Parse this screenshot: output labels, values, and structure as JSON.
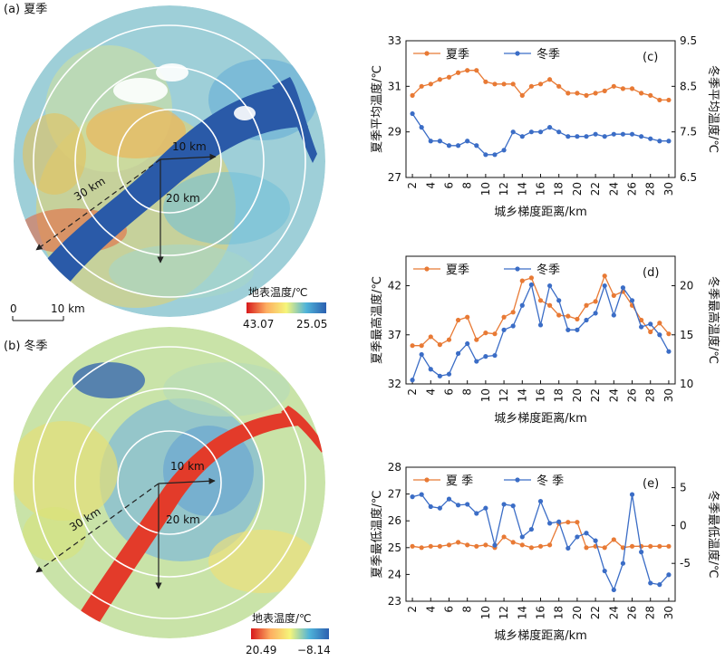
{
  "maps": [
    {
      "label": "(a) 夏季",
      "ring_labels": [
        "10 km",
        "20 km",
        "30 km"
      ],
      "scalebar": {
        "start": "0",
        "end": "10 km"
      },
      "legend": {
        "title": "地表温度/℃",
        "max": "43.07",
        "min": "25.05"
      }
    },
    {
      "label": "(b) 冬季",
      "ring_labels": [
        "10 km",
        "20 km",
        "30 km"
      ],
      "legend": {
        "title": "地表温度/℃",
        "max": "20.49",
        "min": "−8.14"
      }
    }
  ],
  "chart_data": [
    {
      "type": "line",
      "panel": "(c)",
      "xlabel": "城乡梯度距离/km",
      "ylabel_left": "夏季平均温度/℃",
      "ylabel_right": "冬季平均温度/℃",
      "x": [
        2,
        3,
        4,
        5,
        6,
        7,
        8,
        9,
        10,
        11,
        12,
        13,
        14,
        15,
        16,
        17,
        18,
        19,
        20,
        21,
        22,
        23,
        24,
        25,
        26,
        27,
        28,
        29,
        30
      ],
      "xticks": [
        2,
        4,
        6,
        8,
        10,
        12,
        14,
        16,
        18,
        20,
        22,
        24,
        26,
        28,
        30
      ],
      "ylim_left": [
        27,
        33
      ],
      "yticks_left": [
        27,
        29,
        31,
        33
      ],
      "ylim_right": [
        6.5,
        9.5
      ],
      "yticks_right": [
        "6.5",
        "7.5",
        "8.5",
        "9.5"
      ],
      "legend": "top-left",
      "series": [
        {
          "name": "夏季",
          "axis": "left",
          "color": "#E87A35",
          "values": [
            30.6,
            31.0,
            31.1,
            31.3,
            31.4,
            31.6,
            31.7,
            31.7,
            31.2,
            31.1,
            31.1,
            31.1,
            30.6,
            31.0,
            31.1,
            31.3,
            31.0,
            30.7,
            30.7,
            30.6,
            30.7,
            30.8,
            31.0,
            30.9,
            30.9,
            30.7,
            30.6,
            30.4,
            30.4
          ]
        },
        {
          "name": "冬季",
          "axis": "right",
          "color": "#3B6DC6",
          "values": [
            7.9,
            7.6,
            7.3,
            7.3,
            7.2,
            7.2,
            7.3,
            7.2,
            7.0,
            7.0,
            7.1,
            7.5,
            7.4,
            7.5,
            7.5,
            7.6,
            7.5,
            7.4,
            7.4,
            7.4,
            7.45,
            7.4,
            7.45,
            7.45,
            7.45,
            7.4,
            7.35,
            7.3,
            7.3
          ]
        }
      ]
    },
    {
      "type": "line",
      "panel": "(d)",
      "xlabel": "城乡梯度距离/km",
      "ylabel_left": "夏季最高温度/℃",
      "ylabel_right": "冬季最高温度/℃",
      "x": [
        2,
        3,
        4,
        5,
        6,
        7,
        8,
        9,
        10,
        11,
        12,
        13,
        14,
        15,
        16,
        17,
        18,
        19,
        20,
        21,
        22,
        23,
        24,
        25,
        26,
        27,
        28,
        29,
        30
      ],
      "xticks": [
        2,
        4,
        6,
        8,
        10,
        12,
        14,
        16,
        18,
        20,
        22,
        24,
        26,
        28,
        30
      ],
      "ylim_left": [
        32,
        45
      ],
      "yticks_left": [
        32,
        37,
        42
      ],
      "ylim_right": [
        10,
        23
      ],
      "yticks_right": [
        "10",
        "15",
        "20"
      ],
      "legend": "top-left",
      "series": [
        {
          "name": "夏季",
          "axis": "left",
          "color": "#E87A35",
          "values": [
            35.9,
            35.9,
            36.8,
            36.0,
            36.5,
            38.5,
            38.8,
            36.5,
            37.2,
            37.1,
            38.8,
            39.3,
            42.5,
            42.8,
            40.5,
            40.0,
            39.0,
            38.9,
            38.6,
            40.0,
            40.4,
            43.0,
            41.0,
            41.4,
            40.0,
            38.5,
            37.3,
            38.2,
            37.1
          ]
        },
        {
          "name": "冬季",
          "axis": "right",
          "color": "#3B6DC6",
          "values": [
            10.4,
            13.0,
            11.5,
            10.8,
            11.0,
            13.1,
            14.1,
            12.3,
            12.8,
            12.9,
            15.5,
            15.9,
            18.0,
            20.1,
            16.0,
            20.0,
            18.5,
            15.5,
            15.5,
            16.5,
            17.2,
            20.0,
            17.0,
            19.8,
            18.5,
            15.8,
            16.1,
            15.0,
            13.3
          ]
        }
      ]
    },
    {
      "type": "line",
      "panel": "(e)",
      "xlabel": "城乡梯度距离/km",
      "ylabel_left": "夏季最低温度/℃",
      "ylabel_right": "冬季最低温度/℃",
      "x": [
        2,
        3,
        4,
        5,
        6,
        7,
        8,
        9,
        10,
        11,
        12,
        13,
        14,
        15,
        16,
        17,
        18,
        19,
        20,
        21,
        22,
        23,
        24,
        25,
        26,
        27,
        28,
        29,
        30
      ],
      "xticks": [
        2,
        4,
        6,
        8,
        10,
        12,
        14,
        16,
        18,
        20,
        22,
        24,
        26,
        28,
        30
      ],
      "ylim_left": [
        23,
        28
      ],
      "yticks_left": [
        23,
        24,
        25,
        26,
        27,
        28
      ],
      "ylim_right": [
        -10,
        7.7
      ],
      "yticks_right": [
        "-5",
        "0",
        "5"
      ],
      "legend": "top-left",
      "series": [
        {
          "name": "夏 季",
          "axis": "left",
          "color": "#E87A35",
          "values": [
            25.05,
            25.0,
            25.05,
            25.05,
            25.1,
            25.2,
            25.1,
            25.05,
            25.1,
            25.0,
            25.4,
            25.2,
            25.1,
            25.0,
            25.05,
            25.1,
            25.9,
            25.95,
            25.95,
            25.0,
            25.05,
            25.0,
            25.3,
            25.0,
            25.05,
            25.05,
            25.05,
            25.05,
            25.05
          ]
        },
        {
          "name": "冬 季",
          "axis": "right",
          "color": "#3B6DC6",
          "values": [
            3.8,
            4.1,
            2.5,
            2.3,
            3.5,
            2.7,
            2.8,
            1.6,
            2.3,
            -2.6,
            2.8,
            2.6,
            -1.5,
            -0.5,
            3.2,
            0.3,
            0.5,
            -3.0,
            -1.5,
            -1.0,
            -2.0,
            -6.0,
            -8.5,
            -5.0,
            4.1,
            -3.5,
            -7.6,
            -7.8,
            -6.5
          ]
        }
      ]
    }
  ]
}
